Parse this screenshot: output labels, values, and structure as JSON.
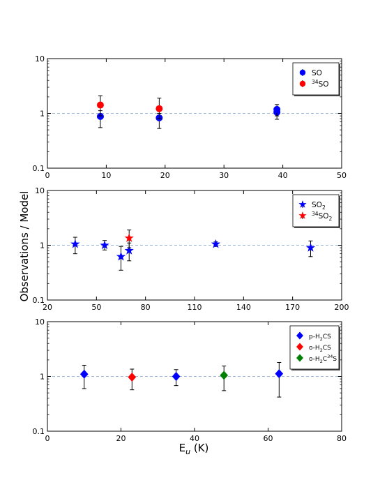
{
  "shared_ylabel": "Observations / Model",
  "shared_xlabel": {
    "main": "E",
    "sub": "u",
    "rest": " (K)"
  },
  "chart_data": [
    {
      "type": "scatter",
      "yscale": "log",
      "ylim": [
        0.1,
        10
      ],
      "xlim": [
        0,
        50
      ],
      "xticks": [
        0,
        10,
        20,
        30,
        40,
        50
      ],
      "yticks": [
        {
          "v": 0.1,
          "label": "0.1"
        },
        {
          "v": 1,
          "label": "1"
        },
        {
          "v": 10,
          "label": "10"
        }
      ],
      "reference_line": 1,
      "legend_position": "top-right",
      "series": [
        {
          "name": "SO",
          "label_pre": "",
          "label_sup": "",
          "label_main": "SO",
          "label_sub": "",
          "label_post": "",
          "marker": "circle",
          "color": "#0000ff",
          "points": [
            {
              "x": 9,
              "y": 0.88,
              "ylo": 0.55,
              "yhi": 1.12
            },
            {
              "x": 19,
              "y": 0.83,
              "ylo": 0.53,
              "yhi": 1.0
            },
            {
              "x": 39,
              "y": 1.05,
              "ylo": 0.78,
              "yhi": 1.3
            },
            {
              "x": 39,
              "y": 1.18,
              "ylo": 0.9,
              "yhi": 1.45
            }
          ]
        },
        {
          "name": "34SO",
          "label_pre": "",
          "label_sup": "34",
          "label_main": "SO",
          "label_sub": "",
          "label_post": "",
          "marker": "circle",
          "color": "#ff0000",
          "points": [
            {
              "x": 9,
              "y": 1.42,
              "ylo": 0.9,
              "yhi": 2.1
            },
            {
              "x": 19,
              "y": 1.22,
              "ylo": 0.8,
              "yhi": 1.9
            }
          ]
        }
      ]
    },
    {
      "type": "scatter",
      "yscale": "log",
      "ylim": [
        0.1,
        10
      ],
      "xlim": [
        20,
        200
      ],
      "xticks": [
        20,
        50,
        80,
        110,
        140,
        170,
        200
      ],
      "yticks": [
        {
          "v": 0.1,
          "label": "0.1"
        },
        {
          "v": 1,
          "label": "1"
        },
        {
          "v": 10,
          "label": "10"
        }
      ],
      "reference_line": 1,
      "legend_position": "top-right",
      "series": [
        {
          "name": "SO2",
          "label_pre": "",
          "label_sup": "",
          "label_main": "SO",
          "label_sub": "2",
          "label_post": "",
          "marker": "star",
          "color": "#0000ff",
          "points": [
            {
              "x": 37,
              "y": 1.05,
              "ylo": 0.7,
              "yhi": 1.4
            },
            {
              "x": 55,
              "y": 1.0,
              "ylo": 0.82,
              "yhi": 1.22
            },
            {
              "x": 65,
              "y": 0.62,
              "ylo": 0.35,
              "yhi": 0.95
            },
            {
              "x": 70,
              "y": 0.8,
              "ylo": 0.52,
              "yhi": 1.1
            },
            {
              "x": 123,
              "y": 1.05,
              "ylo": 0.95,
              "yhi": 1.15
            },
            {
              "x": 181,
              "y": 0.9,
              "ylo": 0.62,
              "yhi": 1.2
            }
          ]
        },
        {
          "name": "34SO2",
          "label_pre": "",
          "label_sup": "34",
          "label_main": "SO",
          "label_sub": "2",
          "label_post": "",
          "marker": "star",
          "color": "#ff0000",
          "points": [
            {
              "x": 70,
              "y": 1.35,
              "ylo": 0.9,
              "yhi": 1.9
            }
          ]
        }
      ]
    },
    {
      "type": "scatter",
      "yscale": "log",
      "ylim": [
        0.1,
        10
      ],
      "xlim": [
        0,
        80
      ],
      "xticks": [
        0,
        20,
        40,
        60,
        80
      ],
      "yticks": [
        {
          "v": 0.1,
          "label": "0.1"
        },
        {
          "v": 1,
          "label": "1"
        },
        {
          "v": 10,
          "label": "10"
        }
      ],
      "reference_line": 1,
      "legend_position": "top-right",
      "series": [
        {
          "name": "p-H2CS",
          "label_pre": "p-H",
          "label_sup": "",
          "label_main": "",
          "label_sub": "2",
          "label_post": "CS",
          "marker": "diamond",
          "color": "#0000ff",
          "points": [
            {
              "x": 10,
              "y": 1.1,
              "ylo": 0.6,
              "yhi": 1.6
            },
            {
              "x": 35,
              "y": 1.0,
              "ylo": 0.68,
              "yhi": 1.33
            },
            {
              "x": 63,
              "y": 1.12,
              "ylo": 0.42,
              "yhi": 1.8
            }
          ]
        },
        {
          "name": "o-H2CS",
          "label_pre": "o-H",
          "label_sup": "",
          "label_main": "",
          "label_sub": "2",
          "label_post": "CS",
          "marker": "diamond",
          "color": "#ff0000",
          "points": [
            {
              "x": 23,
              "y": 0.97,
              "ylo": 0.57,
              "yhi": 1.36
            }
          ]
        },
        {
          "name": "o-H2C34S",
          "label_pre": "o-H",
          "label_sup": "",
          "label_main": "",
          "label_sub": "2",
          "label_post": "C",
          "label_sup2": "34",
          "label_post2": "S",
          "marker": "diamond",
          "color": "#008000",
          "points": [
            {
              "x": 48,
              "y": 1.05,
              "ylo": 0.55,
              "yhi": 1.55
            }
          ]
        }
      ]
    }
  ]
}
